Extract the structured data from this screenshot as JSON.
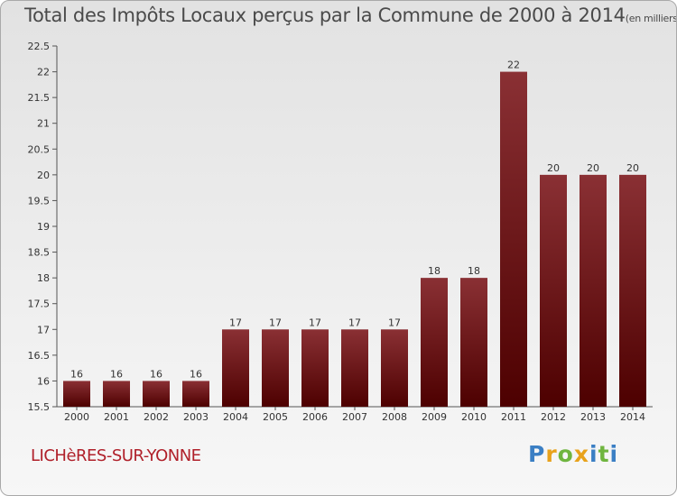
{
  "title": "Total des Impôts Locaux perçus par la Commune de 2000 à 2014",
  "title_unit": "(en milliers d'€)",
  "commune": "LICHèRES-SUR-YONNE",
  "logo": [
    "P",
    "r",
    "o",
    "x",
    "i",
    "t",
    "i"
  ],
  "colors": {
    "bar_top": "#8a3034",
    "bar_bottom": "#4d0000",
    "commune_text": "#b0202a"
  },
  "chart_data": {
    "type": "bar",
    "title": "Total des Impôts Locaux perçus par la Commune de 2000 à 2014",
    "xlabel": "",
    "ylabel": "",
    "categories": [
      "2000",
      "2001",
      "2002",
      "2003",
      "2004",
      "2005",
      "2006",
      "2007",
      "2008",
      "2009",
      "2010",
      "2011",
      "2012",
      "2013",
      "2014"
    ],
    "values": [
      16,
      16,
      16,
      16,
      17,
      17,
      17,
      17,
      17,
      18,
      18,
      22,
      20,
      20,
      20
    ],
    "ylim": [
      15.5,
      22.5
    ],
    "yticks": [
      "15.5",
      "16",
      "16.5",
      "17",
      "17.5",
      "18",
      "18.5",
      "19",
      "19.5",
      "20",
      "20.5",
      "21",
      "21.5",
      "22",
      "22.5"
    ],
    "grid": false,
    "legend": "none"
  }
}
